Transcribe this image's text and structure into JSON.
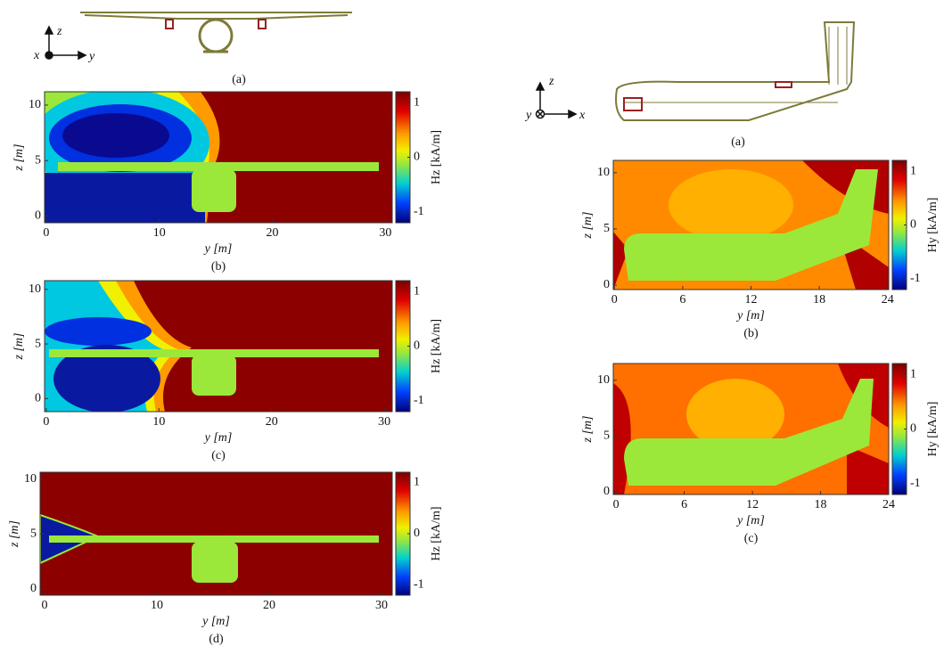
{
  "left_figure": {
    "diagram": {
      "caption": "(a)",
      "axis_labels": [
        "z",
        "x",
        "y"
      ]
    },
    "panels": [
      {
        "caption": "(b)",
        "xlabel": "y [m]",
        "ylabel": "z [m]",
        "xlim": [
          -0.15,
          30.6
        ],
        "ylim": [
          -0.6,
          11.2
        ],
        "xticks": [
          0,
          10,
          20,
          30
        ],
        "yticks": [
          0,
          5,
          10
        ],
        "colorbar": {
          "label": "Hz [kA/m]",
          "lim": [
            -1.2,
            1.2
          ],
          "ticks": [
            1,
            0,
            -1
          ]
        }
      },
      {
        "caption": "(c)",
        "xlabel": "y [m]",
        "ylabel": "z [m]",
        "xlim": [
          -0.15,
          30.7
        ],
        "ylim": [
          -1.2,
          10.8
        ],
        "xticks": [
          0,
          10,
          20,
          30
        ],
        "yticks": [
          0,
          5,
          10
        ],
        "colorbar": {
          "label": "Hz [kA/m]",
          "lim": [
            -1.2,
            1.2
          ],
          "ticks": [
            1,
            0,
            -1
          ]
        }
      },
      {
        "caption": "(d)",
        "xlabel": "y [m]",
        "ylabel": "z [m]",
        "xlim": [
          -0.4,
          30.95
        ],
        "ylim": [
          -0.57,
          10.65
        ],
        "xticks": [
          0,
          10,
          20,
          30
        ],
        "yticks": [
          0,
          5,
          10
        ],
        "colorbar": {
          "label": "Hz [kA/m]",
          "lim": [
            -1.2,
            1.2
          ],
          "ticks": [
            1,
            0,
            -1
          ]
        }
      }
    ]
  },
  "right_figure": {
    "diagram": {
      "caption": "(a)",
      "axis_labels": [
        "z",
        "y",
        "x"
      ]
    },
    "panels": [
      {
        "caption": "(b)",
        "xlabel": "y [m]",
        "ylabel": "z [m]",
        "xlim": [
          -0.1,
          24.1
        ],
        "ylim": [
          -0.4,
          11.1
        ],
        "xticks": [
          0,
          6,
          12,
          18,
          24
        ],
        "yticks": [
          0,
          5,
          10
        ],
        "colorbar": {
          "label": "Hy [kA/m]",
          "lim": [
            -1.2,
            1.2
          ],
          "ticks": [
            1,
            0,
            -1
          ]
        }
      },
      {
        "caption": "(c)",
        "xlabel": "y [m]",
        "ylabel": "z [m]",
        "xlim": [
          -0.25,
          24.0
        ],
        "ylim": [
          -0.25,
          11.5
        ],
        "xticks": [
          0,
          6,
          12,
          18,
          24
        ],
        "yticks": [
          0,
          5,
          10
        ],
        "colorbar": {
          "label": "Hy [kA/m]",
          "lim": [
            -1.2,
            1.2
          ],
          "ticks": [
            1,
            0,
            -1
          ]
        }
      }
    ]
  }
}
